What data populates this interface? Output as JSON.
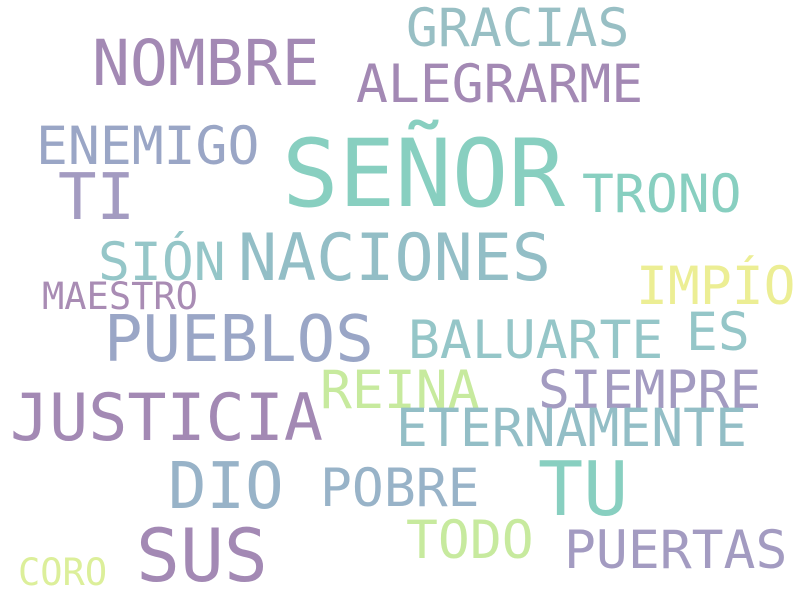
{
  "words": [
    {
      "text": "SEÑOR",
      "color": "#88cfc0"
    },
    {
      "text": "NOMBRE",
      "color": "#a389b4"
    },
    {
      "text": "GRACIAS",
      "color": "#98bfc4"
    },
    {
      "text": "ALEGRARME",
      "color": "#a389b4"
    },
    {
      "text": "ENEMIGO",
      "color": "#9aa6c6"
    },
    {
      "text": "TI",
      "color": "#a39bc1"
    },
    {
      "text": "TRONO",
      "color": "#88cfc0"
    },
    {
      "text": "SIÓN",
      "color": "#95c6c8"
    },
    {
      "text": "NACIONES",
      "color": "#93bec6"
    },
    {
      "text": "IMPÍO",
      "color": "#ecee94"
    },
    {
      "text": "MAESTRO",
      "color": "#a98cb4"
    },
    {
      "text": "PUEBLOS",
      "color": "#9aa6c6"
    },
    {
      "text": "ES",
      "color": "#95c6c8"
    },
    {
      "text": "BALUARTE",
      "color": "#95c6c8"
    },
    {
      "text": "REINA",
      "color": "#c7ea9e"
    },
    {
      "text": "SIEMPRE",
      "color": "#a39bc1"
    },
    {
      "text": "JUSTICIA",
      "color": "#a389b4"
    },
    {
      "text": "ETERNAMENTE",
      "color": "#93bec6"
    },
    {
      "text": "DIO",
      "color": "#98b3c8"
    },
    {
      "text": "POBRE",
      "color": "#98b3c8"
    },
    {
      "text": "TU",
      "color": "#88cfc0"
    },
    {
      "text": "SUS",
      "color": "#a389b4"
    },
    {
      "text": "TODO",
      "color": "#c7ea9e"
    },
    {
      "text": "PUERTAS",
      "color": "#a39bc1"
    },
    {
      "text": "CORO",
      "color": "#dcef9a"
    }
  ]
}
